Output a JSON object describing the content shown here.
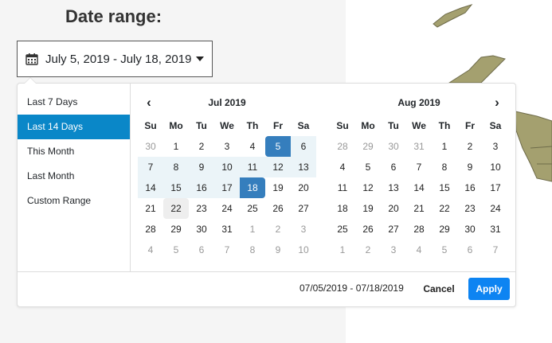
{
  "header": {
    "title": "Date range:"
  },
  "range_input": {
    "value": "July 5, 2019 - July 18, 2019",
    "icon": "calendar-icon"
  },
  "ranges": [
    {
      "label": "Last 7 Days",
      "active": false
    },
    {
      "label": "Last 14 Days",
      "active": true
    },
    {
      "label": "This Month",
      "active": false
    },
    {
      "label": "Last Month",
      "active": false
    },
    {
      "label": "Custom Range",
      "active": false
    }
  ],
  "weekdays": [
    "Su",
    "Mo",
    "Tu",
    "We",
    "Th",
    "Fr",
    "Sa"
  ],
  "calendars": [
    {
      "month": "Jul 2019",
      "nav": "prev",
      "nav_glyph": "‹",
      "weeks": [
        [
          "30",
          "1",
          "2",
          "3",
          "4",
          "5",
          "6"
        ],
        [
          "7",
          "8",
          "9",
          "10",
          "11",
          "12",
          "13"
        ],
        [
          "14",
          "15",
          "16",
          "17",
          "18",
          "19",
          "20"
        ],
        [
          "21",
          "22",
          "23",
          "24",
          "25",
          "26",
          "27"
        ],
        [
          "28",
          "29",
          "30",
          "31",
          "1",
          "2",
          "3"
        ],
        [
          "4",
          "5",
          "6",
          "7",
          "8",
          "9",
          "10"
        ]
      ],
      "off": [
        [
          0,
          0
        ],
        [
          4,
          4
        ],
        [
          4,
          5
        ],
        [
          4,
          6
        ],
        [
          5,
          0
        ],
        [
          5,
          1
        ],
        [
          5,
          2
        ],
        [
          5,
          3
        ],
        [
          5,
          4
        ],
        [
          5,
          5
        ],
        [
          5,
          6
        ]
      ],
      "in_range": [
        [
          0,
          6
        ],
        [
          1,
          0
        ],
        [
          1,
          1
        ],
        [
          1,
          2
        ],
        [
          1,
          3
        ],
        [
          1,
          4
        ],
        [
          1,
          5
        ],
        [
          1,
          6
        ],
        [
          2,
          0
        ],
        [
          2,
          1
        ],
        [
          2,
          2
        ],
        [
          2,
          3
        ]
      ],
      "start": [
        0,
        5
      ],
      "end": [
        2,
        4
      ],
      "today": [
        3,
        1
      ]
    },
    {
      "month": "Aug 2019",
      "nav": "next",
      "nav_glyph": "›",
      "weeks": [
        [
          "28",
          "29",
          "30",
          "31",
          "1",
          "2",
          "3"
        ],
        [
          "4",
          "5",
          "6",
          "7",
          "8",
          "9",
          "10"
        ],
        [
          "11",
          "12",
          "13",
          "14",
          "15",
          "16",
          "17"
        ],
        [
          "18",
          "19",
          "20",
          "21",
          "22",
          "23",
          "24"
        ],
        [
          "25",
          "26",
          "27",
          "28",
          "29",
          "30",
          "31"
        ],
        [
          "1",
          "2",
          "3",
          "4",
          "5",
          "6",
          "7"
        ]
      ],
      "off": [
        [
          0,
          0
        ],
        [
          0,
          1
        ],
        [
          0,
          2
        ],
        [
          0,
          3
        ],
        [
          5,
          0
        ],
        [
          5,
          1
        ],
        [
          5,
          2
        ],
        [
          5,
          3
        ],
        [
          5,
          4
        ],
        [
          5,
          5
        ],
        [
          5,
          6
        ]
      ],
      "in_range": [],
      "start": null,
      "end": null,
      "today": null
    }
  ],
  "footer": {
    "selected_range": "07/05/2019 - 07/18/2019",
    "cancel_label": "Cancel",
    "apply_label": "Apply"
  },
  "colors": {
    "accent": "#0a87c8",
    "selected": "#357ebd",
    "apply": "#0d84f2",
    "map_land": "#a4a06f"
  }
}
